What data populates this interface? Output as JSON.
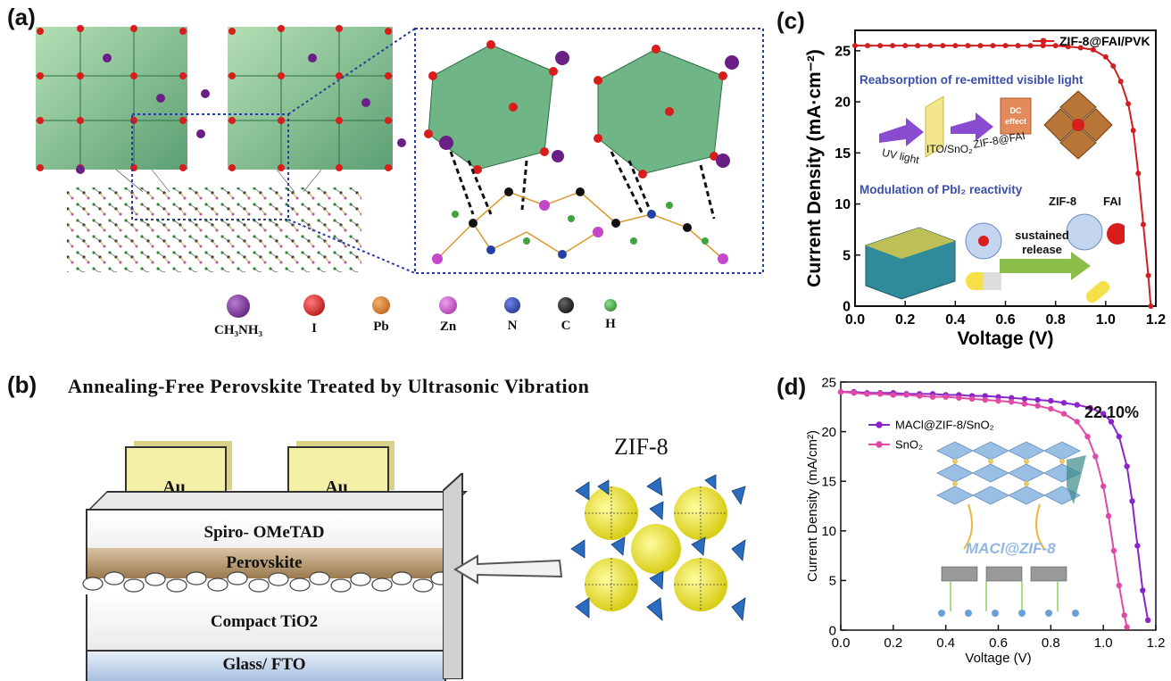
{
  "panels": {
    "a": {
      "label": "(a)",
      "legend": [
        {
          "name": "CH₃NH₃",
          "color": "#6a1f86"
        },
        {
          "name": "I",
          "color": "#d91c1c"
        },
        {
          "name": "Pb",
          "color": "#e07a22"
        },
        {
          "name": "Zn",
          "color": "#c447c9"
        },
        {
          "name": "N",
          "color": "#2340a8"
        },
        {
          "name": "C",
          "color": "#111111"
        },
        {
          "name": "H",
          "color": "#3fa33f"
        }
      ]
    },
    "b": {
      "label": "(b)",
      "title": "Annealing-Free Perovskite Treated by Ultrasonic Vibration",
      "layers": {
        "electrode_left": "Au",
        "electrode_right": "Au",
        "htl": "Spiro- OMeTAD",
        "perovskite": "Perovskite",
        "etl": "Compact TiO2",
        "substrate": "Glass/ FTO"
      },
      "zif_label": "ZIF-8"
    },
    "c": {
      "label": "(c)",
      "inset": {
        "text_reabsorption": "Reabsorption of re-emitted visible light",
        "text_dc": "DC effect",
        "text_uv": "UV light",
        "text_ito": "ITO/SnO₂",
        "text_zif_fai": "ZIF-8@FAI",
        "text_modulation": "Modulation of PbI₂ reactivity",
        "text_zif8": "ZIF-8",
        "text_fai": "FAI",
        "text_sustained": "sustained release"
      }
    },
    "d": {
      "label": "(d)",
      "annotation": "22.10%",
      "inset_label": "MACl@ZIF-8"
    }
  },
  "chart_data": [
    {
      "type": "line",
      "panel": "c",
      "xlabel": "Voltage (V)",
      "ylabel": "Current Density (mA·cm⁻²)",
      "xlim": [
        0.0,
        1.2
      ],
      "ylim": [
        0,
        27
      ],
      "xticks": [
        "0.0",
        "0.2",
        "0.4",
        "0.6",
        "0.8",
        "1.0",
        "1.2"
      ],
      "yticks": [
        "0",
        "5",
        "10",
        "15",
        "20",
        "25"
      ],
      "legend_position": "top-right",
      "series": [
        {
          "name": "ZIF-8@FAI/PVK",
          "color": "#d11f1f",
          "x": [
            0.0,
            0.05,
            0.1,
            0.15,
            0.2,
            0.25,
            0.3,
            0.35,
            0.4,
            0.45,
            0.5,
            0.55,
            0.6,
            0.65,
            0.7,
            0.75,
            0.8,
            0.85,
            0.9,
            0.95,
            1.0,
            1.03,
            1.06,
            1.09,
            1.11,
            1.13,
            1.15,
            1.17,
            1.18
          ],
          "y": [
            25.5,
            25.5,
            25.5,
            25.5,
            25.5,
            25.5,
            25.5,
            25.5,
            25.5,
            25.5,
            25.5,
            25.5,
            25.5,
            25.5,
            25.5,
            25.5,
            25.5,
            25.4,
            25.3,
            25.1,
            24.4,
            23.5,
            22.0,
            19.8,
            17.2,
            13.0,
            8.0,
            3.0,
            0.0
          ]
        }
      ]
    },
    {
      "type": "line",
      "panel": "d",
      "xlabel": "Voltage (V)",
      "ylabel": "Current Density (mA/cm²)",
      "xlim": [
        0.0,
        1.2
      ],
      "ylim": [
        0,
        25
      ],
      "xticks": [
        "0.0",
        "0.2",
        "0.4",
        "0.6",
        "0.8",
        "1.0",
        "1.2"
      ],
      "yticks": [
        "0",
        "5",
        "10",
        "15",
        "20",
        "25"
      ],
      "legend_position": "top-left",
      "series": [
        {
          "name": "MACl@ZIF-8/SnO₂",
          "color": "#8a25c9",
          "x": [
            0.0,
            0.05,
            0.1,
            0.15,
            0.2,
            0.25,
            0.3,
            0.35,
            0.4,
            0.45,
            0.5,
            0.55,
            0.6,
            0.65,
            0.7,
            0.75,
            0.8,
            0.85,
            0.9,
            0.95,
            1.0,
            1.03,
            1.06,
            1.09,
            1.11,
            1.13,
            1.15,
            1.17
          ],
          "y": [
            24.0,
            24.0,
            23.9,
            23.9,
            23.9,
            23.8,
            23.8,
            23.8,
            23.7,
            23.7,
            23.6,
            23.6,
            23.5,
            23.4,
            23.3,
            23.2,
            23.1,
            22.9,
            22.7,
            22.4,
            21.8,
            21.0,
            19.5,
            16.5,
            13.0,
            8.5,
            4.0,
            1.0
          ]
        },
        {
          "name": "SnO₂",
          "color": "#e04aa6",
          "x": [
            0.0,
            0.05,
            0.1,
            0.15,
            0.2,
            0.25,
            0.3,
            0.35,
            0.4,
            0.45,
            0.5,
            0.55,
            0.6,
            0.65,
            0.7,
            0.75,
            0.8,
            0.85,
            0.9,
            0.94,
            0.97,
            1.0,
            1.02,
            1.04,
            1.06,
            1.08,
            1.09
          ],
          "y": [
            24.0,
            23.9,
            23.8,
            23.8,
            23.7,
            23.7,
            23.6,
            23.5,
            23.5,
            23.4,
            23.3,
            23.2,
            23.1,
            23.0,
            22.8,
            22.6,
            22.3,
            21.8,
            21.0,
            19.5,
            17.5,
            14.5,
            11.5,
            8.0,
            4.5,
            1.5,
            0.3
          ]
        }
      ]
    }
  ]
}
